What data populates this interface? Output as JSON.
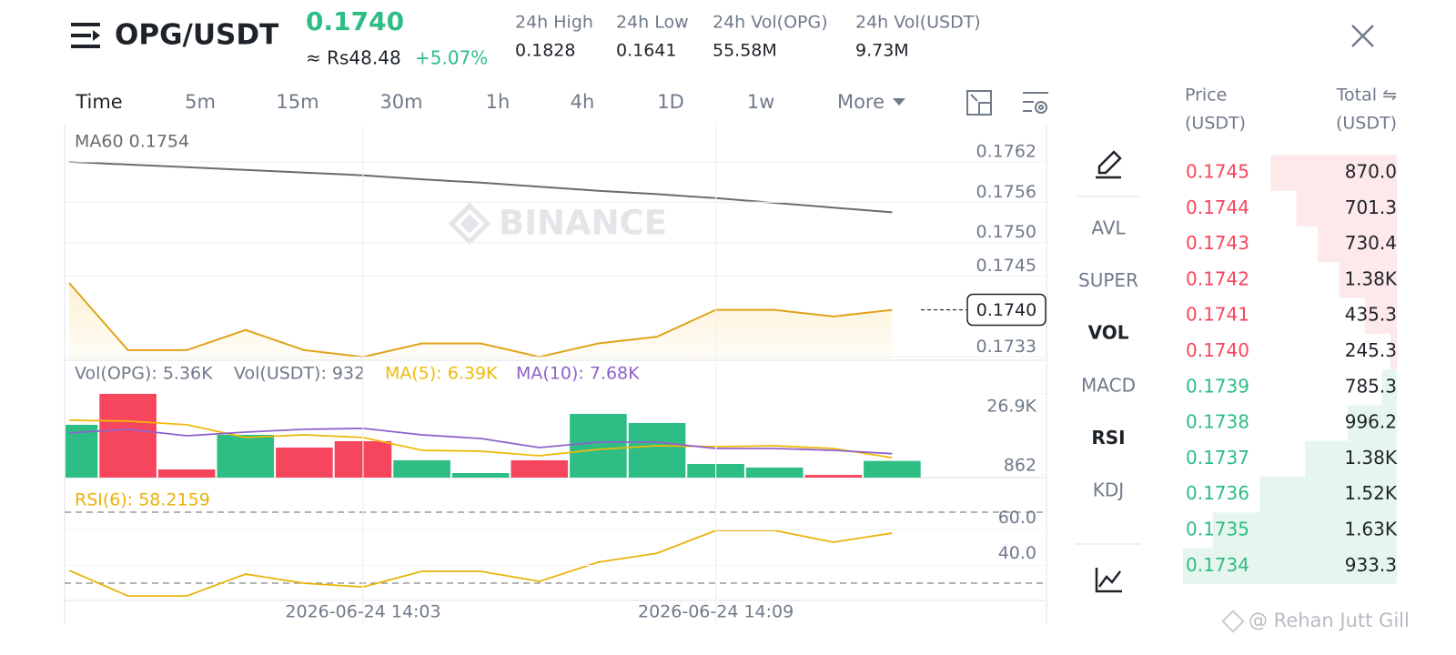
{
  "header": {
    "pair": "OPG/USDT",
    "price": "0.1740",
    "local_price": "≈ Rs48.48",
    "change": "+5.07%",
    "stats": [
      {
        "label": "24h High",
        "value": "0.1828"
      },
      {
        "label": "24h Low",
        "value": "0.1641"
      },
      {
        "label": "24h Vol(OPG)",
        "value": "55.58M"
      },
      {
        "label": "24h Vol(USDT)",
        "value": "9.73M"
      }
    ]
  },
  "timeframes": [
    {
      "label": "Time",
      "active": true
    },
    {
      "label": "5m",
      "active": false
    },
    {
      "label": "15m",
      "active": false
    },
    {
      "label": "30m",
      "active": false
    },
    {
      "label": "1h",
      "active": false
    },
    {
      "label": "4h",
      "active": false
    },
    {
      "label": "1D",
      "active": false
    },
    {
      "label": "1w",
      "active": false
    },
    {
      "label": "More",
      "active": false
    }
  ],
  "indicators": [
    {
      "label": "AVL",
      "active": false
    },
    {
      "label": "SUPER",
      "active": false
    },
    {
      "label": "VOL",
      "active": true
    },
    {
      "label": "MACD",
      "active": false
    },
    {
      "label": "RSI",
      "active": true
    },
    {
      "label": "KDJ",
      "active": false
    }
  ],
  "watermark": "BINANCE",
  "credit": "@ Rehan Jutt Gill",
  "chart_data": [
    {
      "type": "line",
      "ylim": [
        0.17325,
        0.17674
      ],
      "yticks": [
        0.1762,
        0.1756,
        {
          "value": 0.175,
          "label": "0.1750"
        },
        0.1745,
        0.1733
      ],
      "last_price": {
        "value": 0.174,
        "label": "0.1740"
      },
      "grid": true,
      "series": [
        {
          "name": "MA60 0.1754",
          "color": "#6b6b6b",
          "fill": false,
          "values": [
            0.1762,
            0.17616,
            0.17612,
            0.17608,
            0.17604,
            0.176,
            0.17594,
            0.17589,
            0.17583,
            0.17577,
            0.17572,
            0.17566,
            0.17559,
            0.17552,
            0.17545
          ]
        },
        {
          "color": "#e0a31a",
          "fill": true,
          "values": [
            0.1744,
            0.1734,
            0.1734,
            0.1737,
            0.1734,
            0.1733,
            0.1735,
            0.1735,
            0.1733,
            0.1735,
            0.1736,
            0.174,
            0.174,
            0.1739,
            0.174
          ]
        }
      ]
    },
    {
      "type": "bar",
      "title": "Vol(OPG): 5.36K",
      "subtitle": "Vol(USDT): 932",
      "ylim": [
        0,
        37100
      ],
      "yticks": [
        862,
        {
          "value": 26900,
          "label": "26.9K"
        }
      ],
      "series": [
        {
          "type": "bar",
          "values": [
            16960,
            26900,
            2630,
            13740,
            9650,
            11700,
            5560,
            1460,
            5560,
            20470,
            17540,
            4390,
            3220,
            862,
            5360
          ],
          "colors": [
            "#2ebd85",
            "#f6465d",
            "#f6465d",
            "#2ebd85",
            "#f6465d",
            "#f6465d",
            "#2ebd85",
            "#2ebd85",
            "#f6465d",
            "#2ebd85",
            "#2ebd85",
            "#2ebd85",
            "#2ebd85",
            "#f6465d",
            "#2ebd85"
          ]
        },
        {
          "type": "line",
          "name": "MA(5): 6.39K",
          "color": "#f0b90b",
          "values": [
            18420,
            18130,
            16960,
            12870,
            13740,
            12870,
            8770,
            8480,
            7020,
            9060,
            10230,
            9940,
            10230,
            9360,
            6390
          ]
        },
        {
          "type": "line",
          "name": "MA(10): 7.68K",
          "color": "#8e62c9",
          "values": [
            14330,
            15500,
            13450,
            14620,
            15500,
            15790,
            13740,
            12570,
            9650,
            11400,
            11400,
            9360,
            9360,
            8770,
            7680
          ]
        }
      ]
    },
    {
      "type": "line",
      "ylim": [
        20.3,
        79.2
      ],
      "yticks": [
        {
          "value": 60,
          "label": "60.0"
        },
        {
          "value": 40,
          "label": "40.0"
        }
      ],
      "categories": [
        null,
        null,
        null,
        null,
        null,
        "2026-06-24 14:03",
        null,
        null,
        null,
        null,
        null,
        "2026-06-24 14:09",
        null,
        null,
        null
      ],
      "series": [
        {
          "name": "RSI(6): 58.2159",
          "color": "#e9b30b",
          "values": [
            37.2,
            22.8,
            22.8,
            35.1,
            30,
            27.9,
            36.7,
            36.7,
            31,
            41.8,
            46.9,
            59.7,
            59.7,
            53.1,
            58.2
          ]
        }
      ]
    }
  ],
  "order_book": {
    "price_label": "Price",
    "price_unit": "(USDT)",
    "total_label": "Total ⇋",
    "total_unit": "(USDT)",
    "ask_color": "#f6465d",
    "ask_bg": "#fde8ea",
    "bid_color": "#2ebd85",
    "bid_bg": "#e6f6ef",
    "asks": [
      {
        "price": "0.1745",
        "total": "870.0",
        "depth": 59
      },
      {
        "price": "0.1744",
        "total": "701.3",
        "depth": 47
      },
      {
        "price": "0.1743",
        "total": "730.4",
        "depth": 37
      },
      {
        "price": "0.1742",
        "total": "1.38K",
        "depth": 27
      },
      {
        "price": "0.1741",
        "total": "435.3",
        "depth": 15
      },
      {
        "price": "0.1740",
        "total": "245.3",
        "depth": 3
      }
    ],
    "bids": [
      {
        "price": "0.1739",
        "total": "785.3",
        "depth": 7
      },
      {
        "price": "0.1738",
        "total": "996.2",
        "depth": 23
      },
      {
        "price": "0.1737",
        "total": "1.38K",
        "depth": 43
      },
      {
        "price": "0.1736",
        "total": "1.52K",
        "depth": 64
      },
      {
        "price": "0.1735",
        "total": "1.63K",
        "depth": 86
      },
      {
        "price": "0.1734",
        "total": "933.3",
        "depth": 100
      }
    ]
  }
}
